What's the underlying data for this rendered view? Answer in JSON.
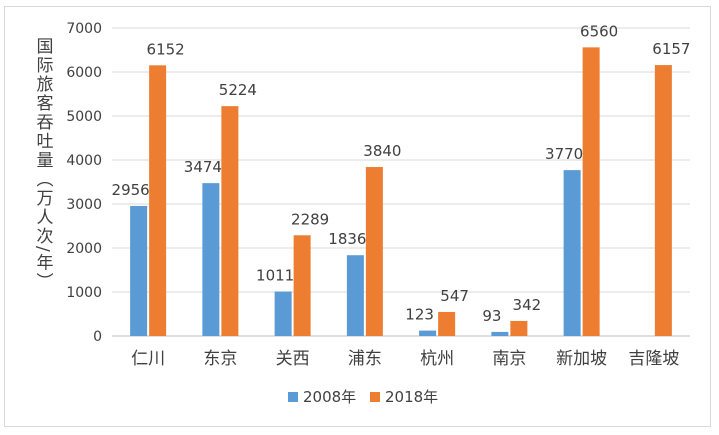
{
  "chart_data": {
    "type": "bar",
    "title": "",
    "xlabel": "",
    "ylabel": "国际旅客吞吐量（万人次/年）",
    "ylim": [
      0,
      7000
    ],
    "yticks": [
      0,
      1000,
      2000,
      3000,
      4000,
      5000,
      6000,
      7000
    ],
    "grid": true,
    "legend_position": "bottom",
    "categories": [
      "仁川",
      "东京",
      "关西",
      "浦东",
      "杭州",
      "南京",
      "新加坡",
      "吉隆坡"
    ],
    "series": [
      {
        "name": "2008年",
        "color": "#5b9bd5",
        "values": [
          2956,
          3474,
          1011,
          1836,
          123,
          93,
          3770,
          null
        ],
        "labels": [
          "2956",
          "3474",
          "1011",
          "1836",
          "123",
          "93",
          "3770",
          ""
        ]
      },
      {
        "name": "2018年",
        "color": "#ed7d31",
        "values": [
          6152,
          5224,
          2289,
          3840,
          547,
          342,
          6560,
          6157
        ],
        "labels": [
          "6152",
          "5224",
          "2289",
          "3840",
          "547",
          "342",
          "6560",
          "6157"
        ]
      }
    ]
  },
  "colors": {
    "grid": "#d9d9d9",
    "text": "#404040",
    "axis": "#bfbfbf"
  }
}
